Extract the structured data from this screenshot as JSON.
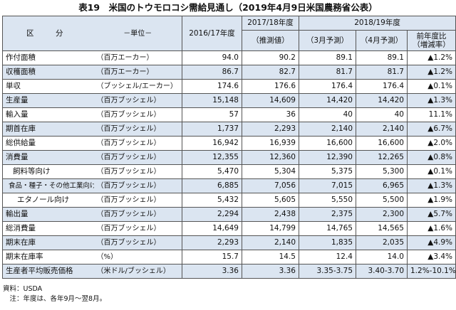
{
  "title": "表19　米国のトウモロコシ需給見通し（2019年4月9日米国農務省公表）",
  "header": {
    "item": "区　分",
    "unit": "－単位－",
    "col_2016": "2016/17年度",
    "col_2017": "2017/18年度",
    "col_2017_sub": "（推測値）",
    "col_2018": "2018/19年度",
    "col_2018_mar": "（3月予測）",
    "col_2018_apr": "（4月予測）",
    "col_change_1": "前年度比",
    "col_change_2": "（増減率）"
  },
  "rows": [
    {
      "label": "作付面積",
      "unit": "（百万エーカー）",
      "v2016": "94.0",
      "v2017": "90.2",
      "mar": "89.1",
      "apr": "89.1",
      "chg": "▲1.2%"
    },
    {
      "label": "収穫面積",
      "unit": "（百万エーカー）",
      "v2016": "86.7",
      "v2017": "82.7",
      "mar": "81.7",
      "apr": "81.7",
      "chg": "▲1.2%"
    },
    {
      "label": "単収",
      "unit": "（ブッシェル/エーカー）",
      "v2016": "174.6",
      "v2017": "176.6",
      "mar": "176.4",
      "apr": "176.4",
      "chg": "▲0.1%"
    },
    {
      "label": "生産量",
      "unit": "（百万ブッシェル）",
      "v2016": "15,148",
      "v2017": "14,609",
      "mar": "14,420",
      "apr": "14,420",
      "chg": "▲1.3%"
    },
    {
      "label": "輸入量",
      "unit": "（百万ブッシェル）",
      "v2016": "57",
      "v2017": "36",
      "mar": "40",
      "apr": "40",
      "chg": "11.1%"
    },
    {
      "label": "期首在庫",
      "unit": "（百万ブッシェル）",
      "v2016": "1,737",
      "v2017": "2,293",
      "mar": "2,140",
      "apr": "2,140",
      "chg": "▲6.7%"
    },
    {
      "label": "総供給量",
      "unit": "（百万ブッシェル）",
      "v2016": "16,942",
      "v2017": "16,939",
      "mar": "16,600",
      "apr": "16,600",
      "chg": "▲2.0%"
    },
    {
      "label": "消費量",
      "unit": "（百万ブッシェル）",
      "v2016": "12,355",
      "v2017": "12,360",
      "mar": "12,390",
      "apr": "12,265",
      "chg": "▲0.8%"
    },
    {
      "label": "飼料等向け",
      "unit": "（百万ブッシェル）",
      "v2016": "5,470",
      "v2017": "5,304",
      "mar": "5,375",
      "apr": "5,300",
      "chg": "▲0.1%"
    },
    {
      "label": "食品・種子・その他工業向け",
      "unit": "（百万ブッシェル）",
      "v2016": "6,885",
      "v2017": "7,056",
      "mar": "7,015",
      "apr": "6,965",
      "chg": "▲1.3%"
    },
    {
      "label": "エタノール向け",
      "unit": "（百万ブッシェル）",
      "v2016": "5,432",
      "v2017": "5,605",
      "mar": "5,550",
      "apr": "5,500",
      "chg": "▲1.9%"
    },
    {
      "label": "輸出量",
      "unit": "（百万ブッシェル）",
      "v2016": "2,294",
      "v2017": "2,438",
      "mar": "2,375",
      "apr": "2,300",
      "chg": "▲5.7%"
    },
    {
      "label": "総消費量",
      "unit": "（百万ブッシェル）",
      "v2016": "14,649",
      "v2017": "14,799",
      "mar": "14,765",
      "apr": "14,565",
      "chg": "▲1.6%"
    },
    {
      "label": "期末在庫",
      "unit": "（百万ブッシェル）",
      "v2016": "2,293",
      "v2017": "2,140",
      "mar": "1,835",
      "apr": "2,035",
      "chg": "▲4.9%"
    },
    {
      "label": "期末在庫率",
      "unit": "（%）",
      "v2016": "15.7",
      "v2017": "14.5",
      "mar": "12.4",
      "apr": "14.0",
      "chg": "▲3.4%"
    },
    {
      "label": "生産者平均販売価格",
      "unit": "（米ドル/ブッシェル）",
      "v2016": "3.36",
      "v2017": "3.36",
      "mar": "3.35-3.75",
      "apr": "3.40-3.70",
      "chg": "1.2%-10.1%"
    }
  ],
  "notes": {
    "source": "資料：USDA",
    "note": "　注：年度は、各年9月～翌8月。"
  },
  "colors": {
    "header_bg": "#dbe5f1",
    "border": "#555555"
  }
}
